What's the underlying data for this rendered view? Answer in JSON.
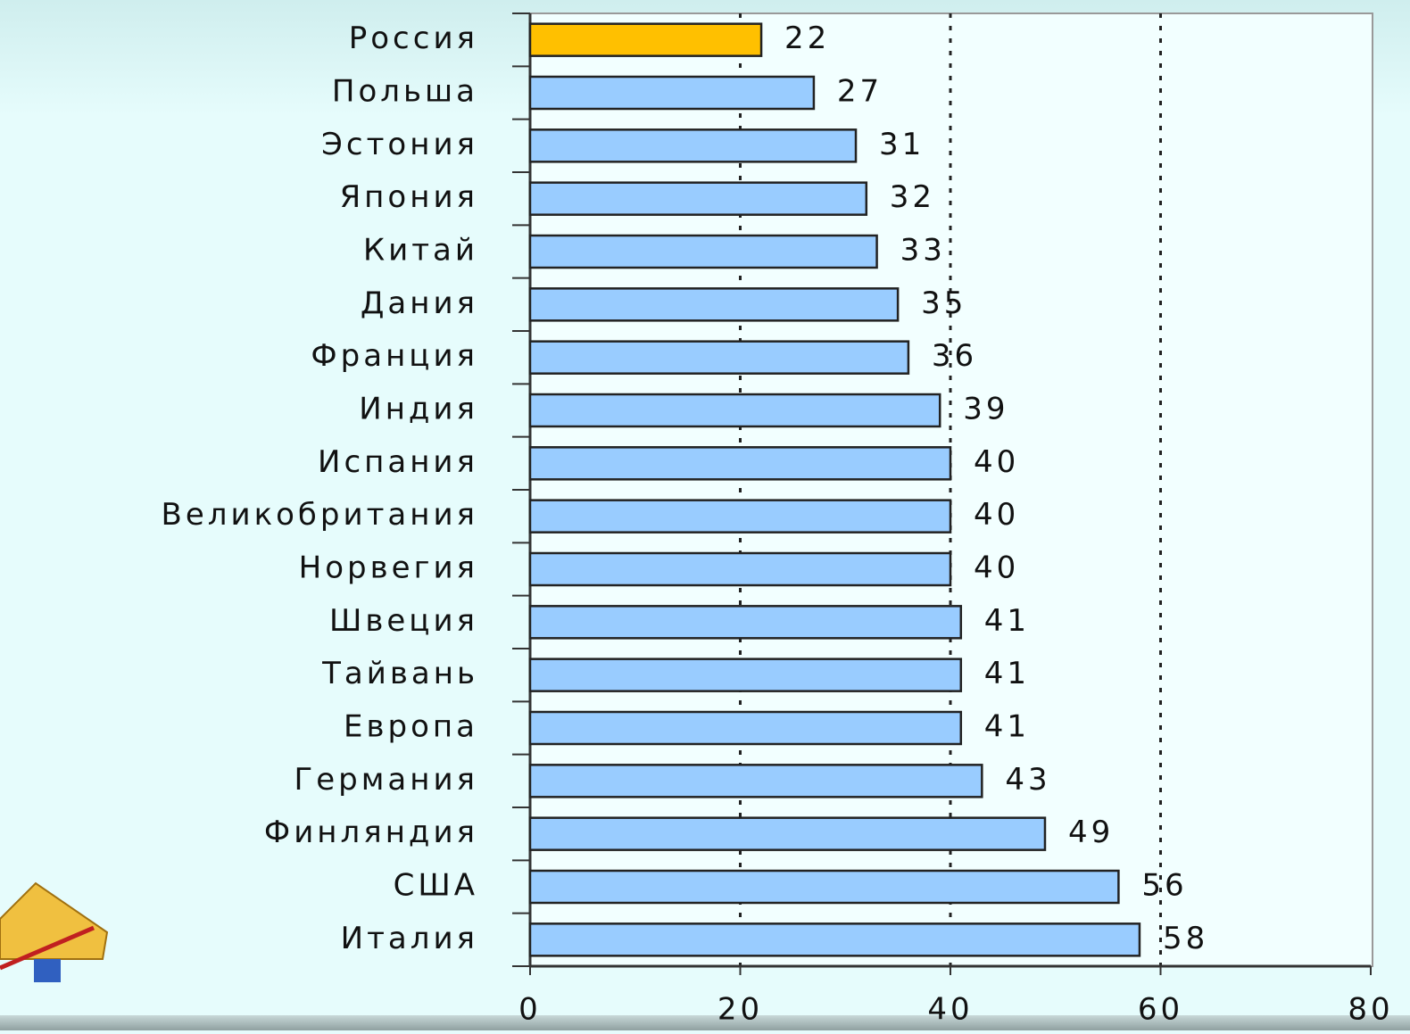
{
  "chart_data": {
    "type": "hbar",
    "categories": [
      "Россия",
      "Польша",
      "Эстония",
      "Япония",
      "Китай",
      "Дания",
      "Франция",
      "Индия",
      "Испания",
      "Великобритания",
      "Норвегия",
      "Швеция",
      "Тайвань",
      "Европа",
      "Германия",
      "Финляндия",
      "США",
      "Италия"
    ],
    "values": [
      22,
      27,
      31,
      32,
      33,
      35,
      36,
      39,
      40,
      40,
      40,
      41,
      41,
      41,
      43,
      49,
      56,
      58
    ],
    "colors": [
      "#ffc000",
      "#99ccff",
      "#99ccff",
      "#99ccff",
      "#99ccff",
      "#99ccff",
      "#99ccff",
      "#99ccff",
      "#99ccff",
      "#99ccff",
      "#99ccff",
      "#99ccff",
      "#99ccff",
      "#99ccff",
      "#99ccff",
      "#99ccff",
      "#99ccff",
      "#99ccff"
    ],
    "xlim": [
      0,
      80
    ],
    "xticks": [
      0,
      20,
      40,
      60,
      80
    ],
    "grid": true
  }
}
